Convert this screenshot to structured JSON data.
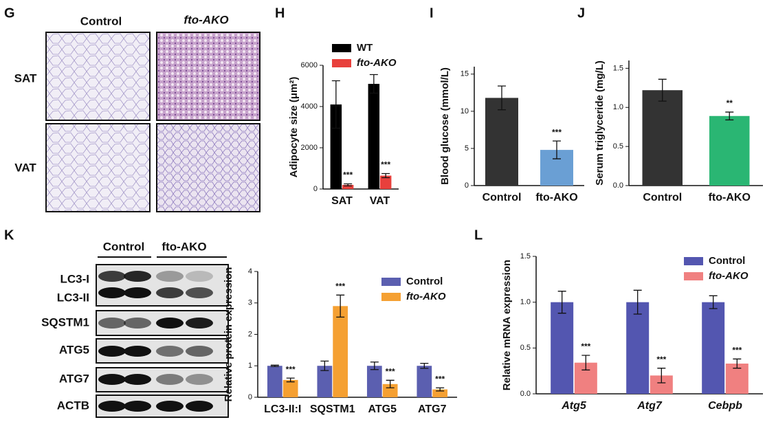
{
  "figure": {
    "panels": [
      "G",
      "H",
      "I",
      "J",
      "K",
      "L"
    ],
    "histology": {
      "columns": [
        "Control",
        "fto-AKO"
      ],
      "rows": [
        "SAT",
        "VAT"
      ]
    },
    "blot": {
      "groups": [
        "Control",
        "fto-AKO"
      ],
      "rows": [
        "LC3-I",
        "LC3-II",
        "SQSTM1",
        "ATG5",
        "ATG7",
        "ACTB"
      ]
    }
  },
  "chart_data": [
    {
      "type": "bar",
      "y_label": "Adipocyte size (μm²)",
      "categories": [
        "SAT",
        "VAT"
      ],
      "series": [
        {
          "name": "WT",
          "color": "#000000",
          "values": [
            4100,
            5100
          ],
          "errors": [
            1150,
            450
          ]
        },
        {
          "name": "fto-AKO",
          "color": "#e8403c",
          "values": [
            200,
            650
          ],
          "errors": [
            50,
            100
          ]
        }
      ],
      "annotations": [
        "***",
        "***"
      ],
      "ylim": [
        0,
        6000
      ],
      "yticks": [
        0,
        2000,
        4000,
        6000
      ]
    },
    {
      "type": "bar",
      "y_label": "Blood glucose (mmol/L)",
      "categories": [
        "Control",
        "fto-AKO"
      ],
      "values": [
        11.8,
        4.8
      ],
      "errors": [
        1.6,
        1.2
      ],
      "colors": [
        "#333333",
        "#6a9fd4"
      ],
      "annotations": [
        null,
        "***"
      ],
      "ylim": [
        0,
        16
      ],
      "yticks": [
        0,
        5,
        10,
        15
      ]
    },
    {
      "type": "bar",
      "y_label": "Serum triglyceride (mg/L)",
      "categories": [
        "Control",
        "fto-AKO"
      ],
      "values": [
        1.22,
        0.89
      ],
      "errors": [
        0.14,
        0.05
      ],
      "colors": [
        "#333333",
        "#2ab673"
      ],
      "annotations": [
        null,
        "**"
      ],
      "ylim": [
        0,
        1.6
      ],
      "yticks": [
        {
          "value": 0,
          "label": "0.0"
        },
        0.5,
        {
          "value": 1,
          "label": "1.0"
        },
        1.5
      ]
    },
    {
      "type": "bar",
      "y_label": "Relative protein expression",
      "categories": [
        "LC3-II:I",
        "SQSTM1",
        "ATG5",
        "ATG7"
      ],
      "series": [
        {
          "name": "Control",
          "color": "#5b5fb0",
          "values": [
            1,
            1,
            1,
            1
          ],
          "errors": [
            0.02,
            0.15,
            0.12,
            0.08
          ]
        },
        {
          "name": "fto-AKO",
          "color": "#f5a032",
          "values": [
            0.55,
            2.9,
            0.42,
            0.25
          ],
          "errors": [
            0.06,
            0.35,
            0.12,
            0.05
          ]
        }
      ],
      "annotations": [
        "***",
        "***",
        "***",
        "***"
      ],
      "ylim": [
        0,
        4
      ],
      "yticks": [
        0,
        1,
        2,
        3,
        4
      ]
    },
    {
      "type": "bar",
      "y_label": "Relative mRNA expression",
      "categories": [
        "Atg5",
        "Atg7",
        "Cebpb"
      ],
      "series": [
        {
          "name": "Control",
          "color": "#5356b0",
          "values": [
            1,
            1,
            1
          ],
          "errors": [
            0.12,
            0.13,
            0.07
          ]
        },
        {
          "name": "fto-AKO",
          "color": "#f08080",
          "values": [
            0.34,
            0.2,
            0.33
          ],
          "errors": [
            0.08,
            0.08,
            0.05
          ]
        }
      ],
      "annotations": [
        "***",
        "***",
        "***"
      ],
      "ylim": [
        0,
        1.5
      ],
      "yticks": [
        {
          "value": 0,
          "label": "0.0"
        },
        0.5,
        {
          "value": 1,
          "label": "1.0"
        },
        1.5
      ]
    }
  ]
}
